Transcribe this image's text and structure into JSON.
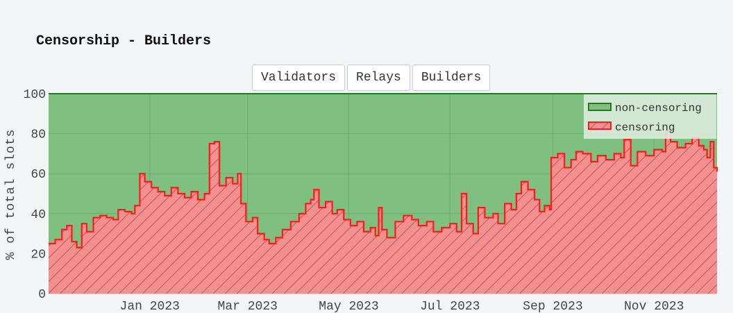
{
  "page": {
    "title": "Censorship - Builders"
  },
  "tabs": [
    {
      "label": "Validators"
    },
    {
      "label": "Relays"
    },
    {
      "label": "Builders"
    }
  ],
  "colors": {
    "background": "#f4f5f7",
    "non_censoring_fill": "#7fbf7f",
    "non_censoring_line": "#1e7b1e",
    "censoring_fill": "#f29090",
    "censoring_hatch": "#b04a4a",
    "censoring_line": "#ff1a1a",
    "legend_bg": "#dcecdc"
  },
  "chart_data": {
    "type": "area",
    "title": "",
    "xlabel": "",
    "ylabel": "% of total slots",
    "ylim": [
      0,
      100
    ],
    "yticks": [
      0,
      20,
      40,
      60,
      80,
      100
    ],
    "x_range": [
      "2022-11-01",
      "2023-12-09"
    ],
    "x_tick_labels": [
      {
        "date": "2023-01-01",
        "label": "Jan 2023"
      },
      {
        "date": "2023-03-01",
        "label": "Mar 2023"
      },
      {
        "date": "2023-05-01",
        "label": "May 2023"
      },
      {
        "date": "2023-07-01",
        "label": "Jul 2023"
      },
      {
        "date": "2023-09-01",
        "label": "Sep 2023"
      },
      {
        "date": "2023-11-01",
        "label": "Nov 2023"
      }
    ],
    "legend_position": "top-right",
    "stacked": true,
    "series": [
      {
        "name": "non-censoring",
        "note": "remainder to 100%",
        "values": "100 - censoring"
      },
      {
        "name": "censoring",
        "points": [
          [
            "2022-11-01",
            25
          ],
          [
            "2022-11-05",
            27
          ],
          [
            "2022-11-09",
            32
          ],
          [
            "2022-11-12",
            34
          ],
          [
            "2022-11-15",
            26
          ],
          [
            "2022-11-18",
            23
          ],
          [
            "2022-11-21",
            35
          ],
          [
            "2022-11-24",
            31
          ],
          [
            "2022-11-28",
            38
          ],
          [
            "2022-12-02",
            39
          ],
          [
            "2022-12-06",
            38
          ],
          [
            "2022-12-10",
            37
          ],
          [
            "2022-12-13",
            42
          ],
          [
            "2022-12-17",
            41
          ],
          [
            "2022-12-21",
            40
          ],
          [
            "2022-12-23",
            44
          ],
          [
            "2022-12-26",
            60
          ],
          [
            "2022-12-29",
            56
          ],
          [
            "2023-01-02",
            53
          ],
          [
            "2023-01-06",
            51
          ],
          [
            "2023-01-10",
            49
          ],
          [
            "2023-01-14",
            53
          ],
          [
            "2023-01-18",
            50
          ],
          [
            "2023-01-22",
            48
          ],
          [
            "2023-01-26",
            51
          ],
          [
            "2023-01-30",
            47
          ],
          [
            "2023-02-03",
            50
          ],
          [
            "2023-02-06",
            75
          ],
          [
            "2023-02-09",
            76
          ],
          [
            "2023-02-12",
            54
          ],
          [
            "2023-02-16",
            58
          ],
          [
            "2023-02-20",
            55
          ],
          [
            "2023-02-23",
            60
          ],
          [
            "2023-02-25",
            45
          ],
          [
            "2023-02-28",
            36
          ],
          [
            "2023-03-04",
            38
          ],
          [
            "2023-03-07",
            30
          ],
          [
            "2023-03-11",
            27
          ],
          [
            "2023-03-14",
            25
          ],
          [
            "2023-03-18",
            28
          ],
          [
            "2023-03-22",
            32
          ],
          [
            "2023-03-27",
            36
          ],
          [
            "2023-04-01",
            40
          ],
          [
            "2023-04-05",
            45
          ],
          [
            "2023-04-08",
            47
          ],
          [
            "2023-04-10",
            52
          ],
          [
            "2023-04-13",
            43
          ],
          [
            "2023-04-17",
            46
          ],
          [
            "2023-04-21",
            40
          ],
          [
            "2023-04-24",
            42
          ],
          [
            "2023-04-28",
            37
          ],
          [
            "2023-05-02",
            34
          ],
          [
            "2023-05-06",
            36
          ],
          [
            "2023-05-10",
            31
          ],
          [
            "2023-05-14",
            33
          ],
          [
            "2023-05-17",
            29
          ],
          [
            "2023-05-19",
            43
          ],
          [
            "2023-05-21",
            32
          ],
          [
            "2023-05-24",
            28
          ],
          [
            "2023-05-29",
            36
          ],
          [
            "2023-06-03",
            39
          ],
          [
            "2023-06-08",
            37
          ],
          [
            "2023-06-12",
            34
          ],
          [
            "2023-06-17",
            36
          ],
          [
            "2023-06-21",
            31
          ],
          [
            "2023-06-26",
            33
          ],
          [
            "2023-07-01",
            35
          ],
          [
            "2023-07-05",
            31
          ],
          [
            "2023-07-08",
            50
          ],
          [
            "2023-07-11",
            35
          ],
          [
            "2023-07-15",
            30
          ],
          [
            "2023-07-18",
            43
          ],
          [
            "2023-07-22",
            38
          ],
          [
            "2023-07-27",
            40
          ],
          [
            "2023-07-30",
            35
          ],
          [
            "2023-08-03",
            45
          ],
          [
            "2023-08-07",
            42
          ],
          [
            "2023-08-10",
            50
          ],
          [
            "2023-08-13",
            56
          ],
          [
            "2023-08-17",
            52
          ],
          [
            "2023-08-21",
            47
          ],
          [
            "2023-08-24",
            41
          ],
          [
            "2023-08-27",
            44
          ],
          [
            "2023-08-30",
            42
          ],
          [
            "2023-08-31",
            68
          ],
          [
            "2023-09-04",
            70
          ],
          [
            "2023-09-08",
            63
          ],
          [
            "2023-09-12",
            67
          ],
          [
            "2023-09-15",
            71
          ],
          [
            "2023-09-19",
            70
          ],
          [
            "2023-09-24",
            66
          ],
          [
            "2023-09-28",
            69
          ],
          [
            "2023-10-03",
            67
          ],
          [
            "2023-10-08",
            70
          ],
          [
            "2023-10-12",
            68
          ],
          [
            "2023-10-14",
            77
          ],
          [
            "2023-10-18",
            64
          ],
          [
            "2023-10-22",
            71
          ],
          [
            "2023-10-27",
            69
          ],
          [
            "2023-11-01",
            72
          ],
          [
            "2023-11-06",
            71
          ],
          [
            "2023-11-08",
            81
          ],
          [
            "2023-11-11",
            76
          ],
          [
            "2023-11-15",
            73
          ],
          [
            "2023-11-20",
            75
          ],
          [
            "2023-11-24",
            78
          ],
          [
            "2023-11-28",
            74
          ],
          [
            "2023-12-01",
            72
          ],
          [
            "2023-12-03",
            68
          ],
          [
            "2023-12-05",
            76
          ],
          [
            "2023-12-07",
            63
          ],
          [
            "2023-12-09",
            61
          ]
        ]
      }
    ]
  }
}
